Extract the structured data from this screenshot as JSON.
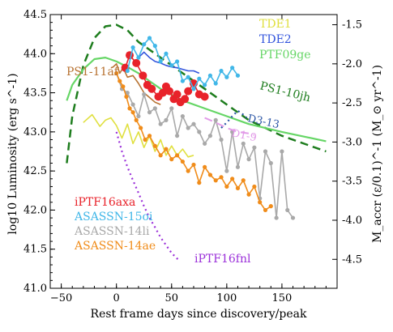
{
  "chart_data": {
    "type": "line",
    "xlabel": "Rest frame days since discovery/peak",
    "ylabel_left": "log10 Luminosity (erg s^-1)",
    "ylabel_right": "M_accr (ε/0.1)^-1 (M_⊙ yr^-1)",
    "xlim": [
      -60,
      200
    ],
    "ylim": [
      41.0,
      44.5
    ],
    "ylim_right_ticks": [
      -1.5,
      -2.0,
      -2.5,
      -3.0,
      -3.5,
      -4.0,
      -4.5
    ],
    "x_ticks": [
      -50,
      0,
      50,
      100,
      150
    ],
    "y_ticks": [
      41.0,
      41.5,
      42.0,
      42.5,
      43.0,
      43.5,
      44.0,
      44.5
    ],
    "x_tick_labels": [
      "−50",
      "0",
      "50",
      "100",
      "150"
    ],
    "y_tick_labels": [
      "41.0",
      "41.5",
      "42.0",
      "42.5",
      "43.0",
      "43.5",
      "44.0",
      "44.5"
    ],
    "y_right_tick_labels": [
      "-1.5",
      "-2.0",
      "-2.5",
      "-3.0",
      "-3.5",
      "-4.0",
      "-4.5"
    ],
    "series": [
      {
        "name": "PS1-10jh",
        "color": "#1e7d1e",
        "style": "dashed",
        "x": [
          -45,
          -40,
          -30,
          -20,
          -10,
          0,
          10,
          20,
          40,
          60,
          80,
          100,
          120,
          150,
          180,
          190
        ],
        "y": [
          42.6,
          43.2,
          43.85,
          44.2,
          44.35,
          44.37,
          44.3,
          44.15,
          43.95,
          43.75,
          43.55,
          43.35,
          43.15,
          42.95,
          42.8,
          42.75
        ]
      },
      {
        "name": "PTF09ge",
        "color": "#66d666",
        "style": "solid",
        "x": [
          -45,
          -40,
          -30,
          -20,
          -10,
          0,
          10,
          20,
          30,
          40,
          60,
          80,
          100,
          120,
          150,
          190
        ],
        "y": [
          43.4,
          43.6,
          43.8,
          43.93,
          43.95,
          43.9,
          43.83,
          43.75,
          43.65,
          43.55,
          43.4,
          43.3,
          43.2,
          43.1,
          43.0,
          42.88
        ]
      },
      {
        "name": "PS1-11af",
        "color": "#b87333",
        "style": "solid",
        "x": [
          -5,
          -3,
          0,
          3,
          6,
          10,
          15,
          20,
          25,
          30,
          35,
          40
        ],
        "y": [
          43.82,
          43.83,
          43.87,
          43.75,
          43.82,
          43.7,
          43.72,
          43.62,
          43.5,
          43.44,
          43.38,
          43.35
        ]
      },
      {
        "name": "TDE1",
        "color": "#e0e040",
        "style": "solid",
        "x": [
          -30,
          -22,
          -15,
          -10,
          -5,
          0,
          5,
          10,
          15,
          20,
          25,
          30,
          35,
          40,
          45,
          50,
          55,
          60,
          65,
          70
        ],
        "y": [
          43.12,
          43.22,
          43.07,
          43.15,
          43.18,
          43.08,
          42.92,
          43.1,
          42.85,
          43.0,
          42.8,
          42.95,
          42.75,
          42.9,
          42.7,
          42.82,
          42.7,
          42.78,
          42.68,
          42.7
        ]
      },
      {
        "name": "TDE2",
        "color": "#3355dd",
        "style": "solid",
        "x": [
          20,
          25,
          30,
          35,
          40,
          45,
          50,
          55,
          60,
          65,
          70,
          75
        ],
        "y": [
          43.95,
          44.02,
          43.95,
          43.9,
          43.88,
          43.85,
          43.83,
          43.82,
          43.8,
          43.78,
          43.78,
          43.75
        ]
      },
      {
        "name": "iPTF16axa",
        "color": "#e8222a",
        "style": "solid",
        "x": [
          8,
          12,
          18,
          24,
          28,
          32,
          38,
          42,
          45,
          48,
          52,
          55,
          58,
          62,
          65,
          70,
          75,
          80
        ],
        "y": [
          43.82,
          43.98,
          43.88,
          43.72,
          43.6,
          43.55,
          43.45,
          43.5,
          43.58,
          43.52,
          43.42,
          43.48,
          43.38,
          43.42,
          43.52,
          43.62,
          43.48,
          43.45
        ]
      },
      {
        "name": "ASASSN-15oi",
        "color": "#41b7e8",
        "style": "solid",
        "x": [
          10,
          15,
          20,
          25,
          30,
          35,
          40,
          45,
          50,
          55,
          60,
          65,
          70,
          75,
          80,
          85,
          90,
          95,
          100,
          105,
          110
        ],
        "y": [
          43.78,
          44.08,
          43.95,
          44.12,
          44.2,
          44.1,
          43.9,
          44.0,
          43.85,
          43.9,
          43.65,
          43.7,
          43.55,
          43.68,
          43.6,
          43.72,
          43.62,
          43.78,
          43.7,
          43.82,
          43.72
        ]
      },
      {
        "name": "ASASSN-14li",
        "color": "#a9a9a9",
        "style": "solid",
        "x": [
          0,
          5,
          10,
          15,
          20,
          25,
          30,
          35,
          40,
          45,
          50,
          55,
          60,
          65,
          70,
          75,
          80,
          85,
          90,
          95,
          100,
          105,
          110,
          115,
          120,
          125,
          130,
          135,
          140,
          145,
          150,
          155,
          160
        ],
        "y": [
          43.75,
          43.55,
          43.5,
          43.35,
          43.2,
          43.48,
          43.25,
          43.3,
          43.1,
          43.15,
          43.3,
          42.95,
          43.2,
          43.05,
          43.1,
          43.0,
          42.85,
          42.95,
          43.15,
          42.9,
          42.5,
          43.0,
          42.55,
          42.85,
          42.65,
          42.8,
          42.15,
          42.75,
          42.6,
          41.9,
          42.75,
          42.0,
          41.9
        ]
      },
      {
        "name": "ASASSN-14ae",
        "color": "#f08c1a",
        "style": "solid",
        "x": [
          0,
          3,
          6,
          9,
          12,
          15,
          18,
          22,
          26,
          30,
          35,
          40,
          45,
          50,
          55,
          60,
          65,
          70,
          75,
          80,
          85,
          90,
          95,
          100,
          105,
          110,
          115,
          120,
          125,
          130,
          135,
          140
        ],
        "y": [
          43.75,
          43.65,
          43.58,
          43.45,
          43.3,
          43.25,
          43.15,
          43.05,
          42.9,
          42.95,
          42.82,
          42.7,
          42.78,
          42.65,
          42.7,
          42.62,
          42.5,
          42.58,
          42.35,
          42.55,
          42.45,
          42.38,
          42.42,
          42.3,
          42.4,
          42.28,
          42.38,
          42.2,
          42.3,
          42.1,
          42.0,
          42.05
        ]
      },
      {
        "name": "iPTF16fnl",
        "color": "#9b30d9",
        "style": "dotted",
        "x": [
          0,
          5,
          10,
          15,
          20,
          25,
          30,
          35,
          40,
          45,
          50,
          55,
          58
        ],
        "y": [
          43.0,
          42.75,
          42.55,
          42.38,
          42.22,
          42.05,
          41.9,
          41.78,
          41.65,
          41.55,
          41.45,
          41.38,
          41.35
        ]
      },
      {
        "name": "D1-9",
        "color": "#e29be8",
        "style": "dashed",
        "x": [
          80,
          90,
          100,
          110,
          120,
          125
        ],
        "y": [
          43.18,
          43.12,
          43.05,
          43.0,
          42.98,
          42.96
        ]
      },
      {
        "name": "D3-13",
        "color": "#2a55a5",
        "style": "dotted",
        "x": [
          95,
          100,
          105,
          110,
          115,
          118
        ],
        "y": [
          43.05,
          43.12,
          43.2,
          43.27,
          43.22,
          43.18
        ]
      }
    ],
    "legend_top_right": [
      "TDE1",
      "TDE2",
      "PTF09ge"
    ],
    "legend_bottom_left": [
      "iPTF16axa",
      "ASASSN-15oi",
      "ASASSN-14li",
      "ASASSN-14ae"
    ],
    "inline_labels": [
      "PS1-11af",
      "PS1-10jh",
      "D3-13",
      "D1-9",
      "iPTF16fnl"
    ]
  }
}
